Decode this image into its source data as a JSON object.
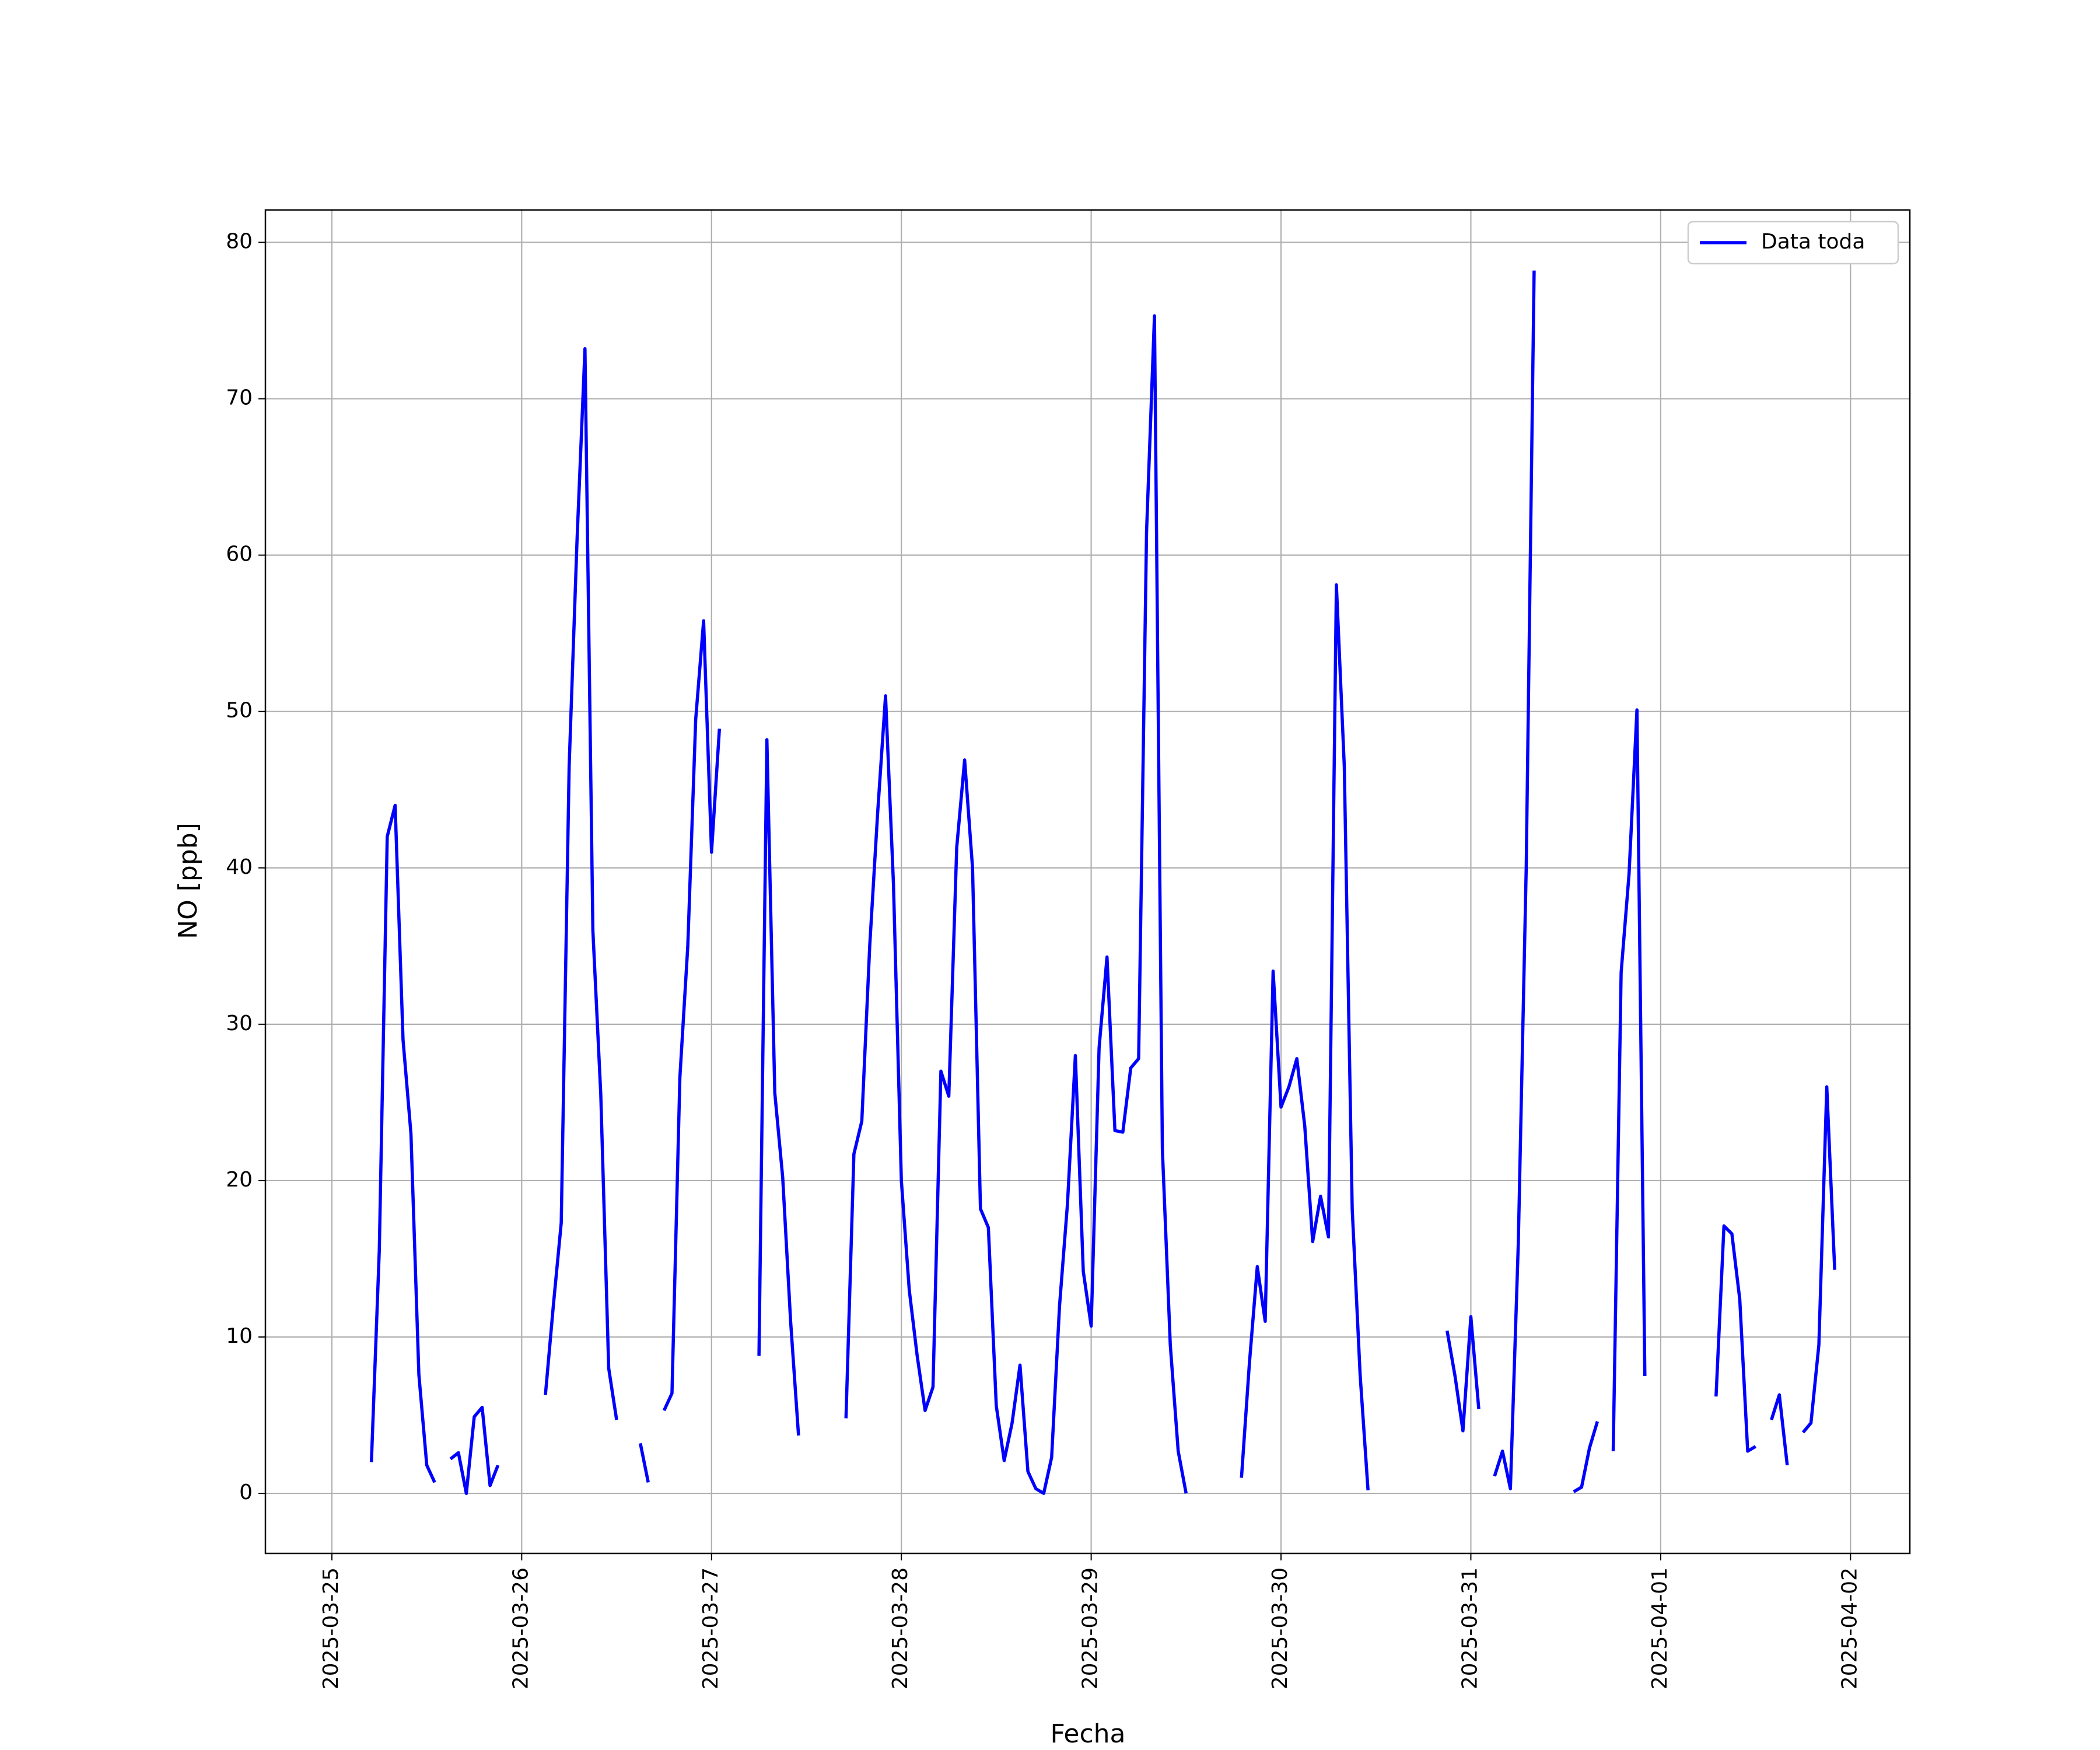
{
  "chart_data": {
    "type": "line",
    "xlabel": "Fecha",
    "ylabel": "NO [ppb]",
    "x": [
      "2025-03-25 05:00",
      "2025-03-25 06:00",
      "2025-03-25 07:00",
      "2025-03-25 08:00",
      "2025-03-25 09:00",
      "2025-03-25 10:00",
      "2025-03-25 11:00",
      "2025-03-25 12:00",
      "2025-03-25 13:00",
      "2025-03-25 14:00",
      "2025-03-25 15:00",
      "2025-03-25 16:00",
      "2025-03-25 17:00",
      "2025-03-25 18:00",
      "2025-03-25 19:00",
      "2025-03-25 20:00",
      "2025-03-25 21:00",
      "2025-03-25 22:00",
      "2025-03-26 03:00",
      "2025-03-26 04:00",
      "2025-03-26 05:00",
      "2025-03-26 06:00",
      "2025-03-26 07:00",
      "2025-03-26 08:00",
      "2025-03-26 09:00",
      "2025-03-26 10:00",
      "2025-03-26 11:00",
      "2025-03-26 12:00",
      "2025-03-26 13:00",
      "2025-03-26 15:00",
      "2025-03-26 16:00",
      "2025-03-26 17:00",
      "2025-03-26 18:00",
      "2025-03-26 19:00",
      "2025-03-26 20:00",
      "2025-03-26 21:00",
      "2025-03-26 22:00",
      "2025-03-26 23:00",
      "2025-03-27 00:00",
      "2025-03-27 01:00",
      "2025-03-27 02:00",
      "2025-03-27 06:00",
      "2025-03-27 07:00",
      "2025-03-27 08:00",
      "2025-03-27 09:00",
      "2025-03-27 10:00",
      "2025-03-27 11:00",
      "2025-03-27 12:00",
      "2025-03-27 17:00",
      "2025-03-27 18:00",
      "2025-03-27 19:00",
      "2025-03-27 20:00",
      "2025-03-27 21:00",
      "2025-03-27 22:00",
      "2025-03-27 23:00",
      "2025-03-28 00:00",
      "2025-03-28 01:00",
      "2025-03-28 02:00",
      "2025-03-28 03:00",
      "2025-03-28 04:00",
      "2025-03-28 05:00",
      "2025-03-28 06:00",
      "2025-03-28 07:00",
      "2025-03-28 08:00",
      "2025-03-28 09:00",
      "2025-03-28 10:00",
      "2025-03-28 11:00",
      "2025-03-28 12:00",
      "2025-03-28 13:00",
      "2025-03-28 14:00",
      "2025-03-28 15:00",
      "2025-03-28 16:00",
      "2025-03-28 17:00",
      "2025-03-28 18:00",
      "2025-03-28 19:00",
      "2025-03-28 20:00",
      "2025-03-28 21:00",
      "2025-03-28 22:00",
      "2025-03-28 23:00",
      "2025-03-29 00:00",
      "2025-03-29 01:00",
      "2025-03-29 02:00",
      "2025-03-29 03:00",
      "2025-03-29 04:00",
      "2025-03-29 05:00",
      "2025-03-29 06:00",
      "2025-03-29 07:00",
      "2025-03-29 08:00",
      "2025-03-29 09:00",
      "2025-03-29 10:00",
      "2025-03-29 11:00",
      "2025-03-29 12:00",
      "2025-03-29 13:00",
      "2025-03-29 19:00",
      "2025-03-29 20:00",
      "2025-03-29 21:00",
      "2025-03-29 22:00",
      "2025-03-29 23:00",
      "2025-03-30 00:00",
      "2025-03-30 01:00",
      "2025-03-30 02:00",
      "2025-03-30 03:00",
      "2025-03-30 04:00",
      "2025-03-30 05:00",
      "2025-03-30 06:00",
      "2025-03-30 07:00",
      "2025-03-30 08:00",
      "2025-03-30 09:00",
      "2025-03-30 10:00",
      "2025-03-30 11:00",
      "2025-03-30 12:00",
      "2025-03-30 21:00",
      "2025-03-30 22:00",
      "2025-03-30 23:00",
      "2025-03-31 00:00",
      "2025-03-31 01:00",
      "2025-03-31 02:00",
      "2025-03-31 03:00",
      "2025-03-31 04:00",
      "2025-03-31 05:00",
      "2025-03-31 06:00",
      "2025-03-31 07:00",
      "2025-03-31 08:00",
      "2025-03-31 09:00",
      "2025-03-31 13:00",
      "2025-03-31 14:00",
      "2025-03-31 15:00",
      "2025-03-31 16:00",
      "2025-03-31 17:00",
      "2025-03-31 18:00",
      "2025-03-31 19:00",
      "2025-03-31 20:00",
      "2025-03-31 21:00",
      "2025-03-31 22:00",
      "2025-03-31 23:00",
      "2025-04-01 07:00",
      "2025-04-01 08:00",
      "2025-04-01 09:00",
      "2025-04-01 10:00",
      "2025-04-01 11:00",
      "2025-04-01 12:00",
      "2025-04-01 13:00",
      "2025-04-01 14:00",
      "2025-04-01 15:00",
      "2025-04-01 16:00",
      "2025-04-01 17:00",
      "2025-04-01 18:00",
      "2025-04-01 19:00",
      "2025-04-01 20:00",
      "2025-04-01 21:00",
      "2025-04-01 22:00"
    ],
    "series": [
      {
        "name": "Data toda",
        "color": "#0000ff",
        "values": [
          2,
          15.6,
          42,
          44,
          29,
          23,
          7.6,
          1.8,
          0.7,
          null,
          2.2,
          2.6,
          0,
          4.9,
          5.5,
          0.5,
          1.8,
          null,
          6.3,
          12,
          17.3,
          46.5,
          61,
          73.2,
          36,
          25.5,
          8,
          4.7,
          null,
          3.2,
          0.7,
          null,
          5.3,
          6.4,
          26.6,
          35,
          49.5,
          55.8,
          41,
          48.9,
          null,
          8.8,
          48.2,
          25.6,
          20.2,
          11,
          3.7,
          null,
          4.8,
          21.7,
          23.8,
          35,
          43.5,
          51,
          39,
          20,
          13,
          8.8,
          5.3,
          6.8,
          27,
          25.4,
          41.3,
          46.9,
          40,
          18.2,
          17,
          5.6,
          2.1,
          4.5,
          8.2,
          1.4,
          0.3,
          0,
          2.3,
          12,
          18.5,
          28,
          14.2,
          10.7,
          28.5,
          34.3,
          23.2,
          23.1,
          27.2,
          27.8,
          61.5,
          75.3,
          22,
          9.5,
          2.7,
          0,
          null,
          1,
          8.3,
          14.5,
          11,
          33.4,
          24.7,
          26,
          27.8,
          23.5,
          16.1,
          19,
          16.4,
          58.1,
          46.5,
          18.2,
          7.6,
          0.2,
          null,
          10.4,
          7.5,
          4,
          11.3,
          5.4,
          null,
          1.1,
          2.7,
          0.3,
          16,
          40,
          78.2,
          null,
          0.1,
          0.4,
          2.9,
          4.6,
          null,
          2.7,
          33.3,
          39.6,
          50.1,
          7.5,
          null,
          6.2,
          17.1,
          16.6,
          12.4,
          2.7,
          3,
          null,
          4.7,
          6.3,
          1.8,
          null,
          3.9,
          4.5,
          9.5,
          26,
          14.3
        ]
      }
    ],
    "xlim": [
      "2025-03-24 15:36",
      "2025-04-02 07:30"
    ],
    "xticks": [
      "2025-03-25",
      "2025-03-26",
      "2025-03-27",
      "2025-03-28",
      "2025-03-29",
      "2025-03-30",
      "2025-03-31",
      "2025-04-01",
      "2025-04-02"
    ],
    "ylim": [
      -3.84,
      82.07
    ],
    "yticks": [
      0,
      10,
      20,
      30,
      40,
      50,
      60,
      70,
      80
    ],
    "grid": true,
    "legend": "upper right"
  }
}
